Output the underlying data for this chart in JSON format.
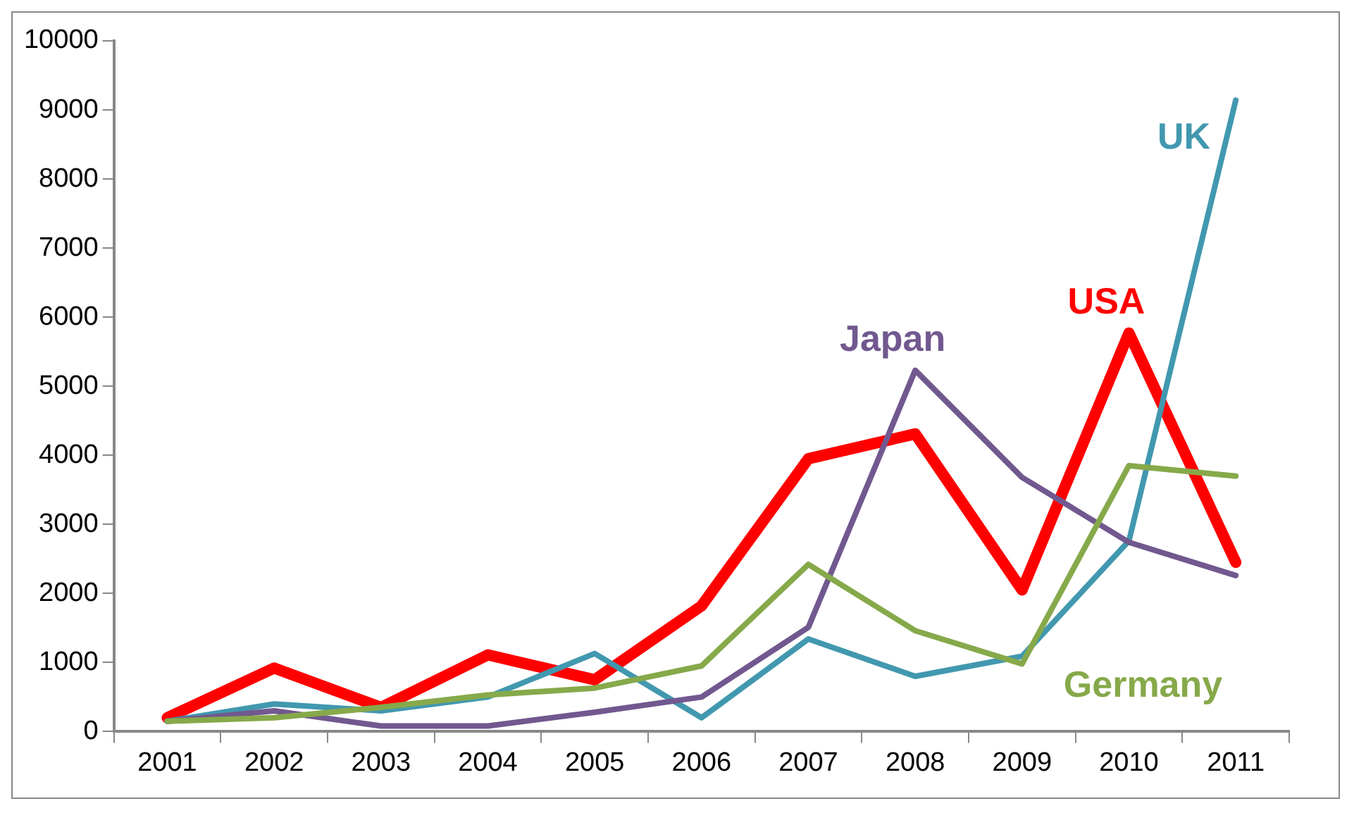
{
  "chart_data": {
    "type": "line",
    "categories": [
      "2001",
      "2002",
      "2003",
      "2004",
      "2005",
      "2006",
      "2007",
      "2008",
      "2009",
      "2010",
      "2011"
    ],
    "ylim": [
      0,
      10000
    ],
    "yticks": [
      0,
      1000,
      2000,
      3000,
      4000,
      5000,
      6000,
      7000,
      8000,
      9000,
      10000
    ],
    "grid": false,
    "legend": false,
    "marker": "none",
    "series": [
      {
        "name": "Germany",
        "color": "#86a94a",
        "values": [
          150,
          200,
          350,
          530,
          630,
          950,
          2420,
          1460,
          980,
          3850,
          3700
        ]
      },
      {
        "name": "Japan",
        "color": "#71588f",
        "values": [
          150,
          300,
          80,
          80,
          280,
          500,
          1510,
          5230,
          3680,
          2740,
          2260
        ]
      },
      {
        "name": "UK",
        "color": "#4198af",
        "values": [
          150,
          400,
          300,
          500,
          1130,
          200,
          1340,
          800,
          1090,
          2760,
          9140
        ]
      },
      {
        "name": "USA",
        "color": "#ff0000",
        "values": [
          200,
          920,
          350,
          1110,
          750,
          1820,
          3950,
          4310,
          2050,
          5770,
          2450
        ]
      }
    ]
  }
}
